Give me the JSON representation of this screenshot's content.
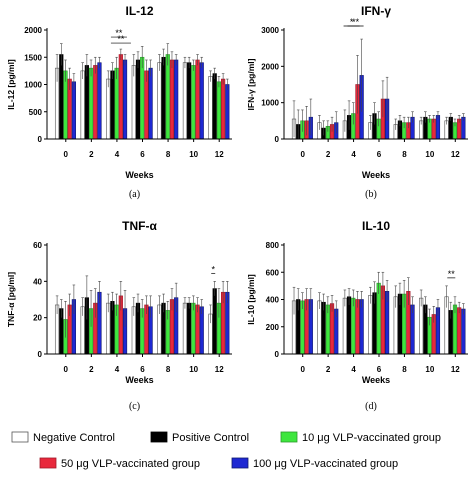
{
  "legend": [
    {
      "label": "Negative Control",
      "color": "#ffffff"
    },
    {
      "label": "Positive Control",
      "color": "#000000"
    },
    {
      "label": "10 μg VLP-vaccinated group",
      "color": "#3ee63e"
    },
    {
      "label": "50 μg VLP-vaccinated group",
      "color": "#e8283c"
    },
    {
      "label": "100 μg VLP-vaccinated group",
      "color": "#1e28d2"
    }
  ],
  "chart_data": [
    {
      "type": "bar",
      "title": "IL-12",
      "xlabel": "Weeks",
      "ylabel": "IL-12 [pg/ml]",
      "panel_label": "(a)",
      "categories": [
        "0",
        "2",
        "4",
        "6",
        "8",
        "10",
        "12"
      ],
      "ylim": [
        0,
        2000
      ],
      "yticks": [
        0,
        500,
        1000,
        1500,
        2000
      ],
      "series": [
        {
          "values": [
            1300,
            1250,
            1100,
            1350,
            1400,
            1400,
            1150
          ],
          "errors": [
            250,
            150,
            150,
            200,
            150,
            100,
            100
          ]
        },
        {
          "values": [
            1550,
            1350,
            1250,
            1450,
            1500,
            1400,
            1200
          ],
          "errors": [
            200,
            200,
            150,
            150,
            150,
            100,
            100
          ]
        },
        {
          "values": [
            1250,
            1300,
            1300,
            1500,
            1550,
            1350,
            1050
          ],
          "errors": [
            200,
            150,
            200,
            200,
            200,
            100,
            100
          ]
        },
        {
          "values": [
            1100,
            1350,
            1550,
            1250,
            1450,
            1450,
            1100
          ],
          "errors": [
            200,
            150,
            100,
            200,
            150,
            100,
            100
          ]
        },
        {
          "values": [
            1050,
            1400,
            1450,
            1300,
            1450,
            1400,
            1000
          ],
          "errors": [
            150,
            100,
            100,
            150,
            100,
            100,
            100
          ]
        }
      ],
      "annotations": [
        {
          "text": "**",
          "category": "4"
        },
        {
          "text": "**",
          "category": "4"
        }
      ]
    },
    {
      "type": "bar",
      "title": "IFN-γ",
      "xlabel": "Weeks",
      "ylabel": "IFN-γ [pg/ml]",
      "panel_label": "(b)",
      "categories": [
        "0",
        "2",
        "4",
        "6",
        "8",
        "10",
        "12"
      ],
      "ylim": [
        0,
        3000
      ],
      "yticks": [
        0,
        1000,
        2000,
        3000
      ],
      "series": [
        {
          "values": [
            550,
            450,
            500,
            450,
            400,
            500,
            500
          ],
          "errors": [
            500,
            200,
            300,
            200,
            150,
            100,
            100
          ]
        },
        {
          "values": [
            400,
            300,
            650,
            700,
            500,
            600,
            600
          ],
          "errors": [
            400,
            200,
            400,
            300,
            150,
            150,
            100
          ]
        },
        {
          "values": [
            500,
            350,
            700,
            550,
            450,
            550,
            450
          ],
          "errors": [
            300,
            150,
            300,
            200,
            150,
            100,
            100
          ]
        },
        {
          "values": [
            500,
            400,
            1500,
            1100,
            450,
            550,
            550
          ],
          "errors": [
            400,
            200,
            800,
            500,
            150,
            100,
            100
          ]
        },
        {
          "values": [
            600,
            450,
            1750,
            1100,
            600,
            650,
            600
          ],
          "errors": [
            500,
            300,
            1000,
            600,
            150,
            100,
            100
          ]
        }
      ],
      "annotations": [
        {
          "text": "*",
          "category": "4"
        },
        {
          "text": "**",
          "category": "4"
        }
      ]
    },
    {
      "type": "bar",
      "title": "TNF-α",
      "xlabel": "Weeks",
      "ylabel": "TNF-α [pg/ml]",
      "panel_label": "(c)",
      "categories": [
        "0",
        "2",
        "4",
        "6",
        "8",
        "10",
        "12"
      ],
      "ylim": [
        0,
        60
      ],
      "yticks": [
        0,
        20,
        40,
        60
      ],
      "series": [
        {
          "values": [
            27,
            26,
            28,
            26,
            27,
            28,
            22
          ],
          "errors": [
            5,
            5,
            5,
            5,
            5,
            3,
            5
          ]
        },
        {
          "values": [
            25,
            31,
            29,
            28,
            28,
            28,
            36
          ],
          "errors": [
            5,
            12,
            5,
            5,
            5,
            3,
            4
          ]
        },
        {
          "values": [
            19,
            25,
            27,
            25,
            24,
            28,
            28
          ],
          "errors": [
            10,
            10,
            6,
            5,
            5,
            4,
            8
          ]
        },
        {
          "values": [
            27,
            28,
            32,
            27,
            30,
            27,
            34
          ],
          "errors": [
            6,
            8,
            8,
            5,
            6,
            4,
            6
          ]
        },
        {
          "values": [
            30,
            34,
            25,
            26,
            31,
            26,
            34
          ],
          "errors": [
            8,
            6,
            10,
            6,
            8,
            4,
            6
          ]
        }
      ],
      "annotations": [
        {
          "text": "*",
          "category": "12"
        }
      ]
    },
    {
      "type": "bar",
      "title": "IL-10",
      "xlabel": "Weeks",
      "ylabel": "IL-10 [pg/ml]",
      "panel_label": "(d)",
      "categories": [
        "0",
        "2",
        "4",
        "6",
        "8",
        "10",
        "12"
      ],
      "ylim": [
        0,
        800
      ],
      "yticks": [
        0,
        200,
        400,
        600,
        800
      ],
      "series": [
        {
          "values": [
            390,
            390,
            410,
            430,
            420,
            410,
            420
          ],
          "errors": [
            100,
            60,
            60,
            60,
            80,
            60,
            80
          ]
        },
        {
          "values": [
            400,
            380,
            420,
            450,
            440,
            360,
            320
          ],
          "errors": [
            80,
            60,
            60,
            80,
            80,
            60,
            60
          ]
        },
        {
          "values": [
            390,
            360,
            410,
            520,
            440,
            270,
            360
          ],
          "errors": [
            60,
            60,
            60,
            80,
            100,
            60,
            60
          ]
        },
        {
          "values": [
            400,
            370,
            400,
            500,
            460,
            290,
            340
          ],
          "errors": [
            80,
            60,
            60,
            100,
            100,
            60,
            40
          ]
        },
        {
          "values": [
            400,
            330,
            400,
            460,
            360,
            340,
            330
          ],
          "errors": [
            80,
            60,
            60,
            80,
            60,
            60,
            40
          ]
        }
      ],
      "annotations": [
        {
          "text": "**",
          "category": "12"
        }
      ]
    }
  ]
}
